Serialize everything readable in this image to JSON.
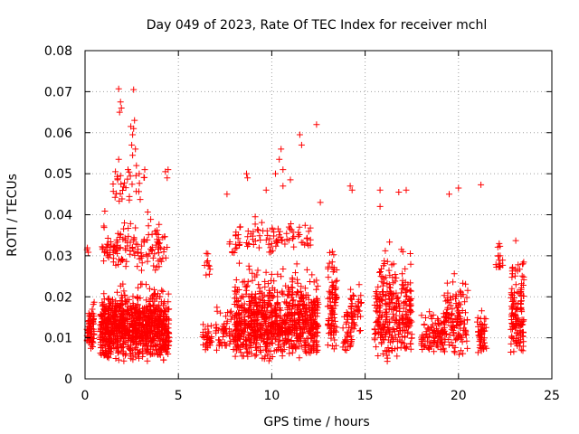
{
  "chart_data": {
    "type": "scatter",
    "title": "Day 049 of 2023, Rate Of TEC Index for receiver mchl",
    "xlabel": "GPS time / hours",
    "ylabel": "ROTI / TECUs",
    "xlim": [
      0,
      25
    ],
    "ylim": [
      0,
      0.08
    ],
    "x_ticks": [
      "0",
      "5",
      "10",
      "15",
      "20",
      "25"
    ],
    "y_ticks": [
      "0",
      "0.01",
      "0.02",
      "0.03",
      "0.04",
      "0.05",
      "0.06",
      "0.07",
      "0.08"
    ],
    "grid": true,
    "marker": "+",
    "color": "#ff0000",
    "clusters": [
      {
        "x": [
          0.1,
          0.5
        ],
        "y_range": [
          0.007,
          0.021
        ],
        "n": 70
      },
      {
        "x": [
          0.1,
          0.3
        ],
        "y_range": [
          0.029,
          0.035
        ],
        "n": 3
      },
      {
        "x": [
          0.8,
          4.5
        ],
        "y_range": [
          0.004,
          0.026
        ],
        "n": 900
      },
      {
        "x": [
          0.9,
          4.4
        ],
        "y_range": [
          0.026,
          0.042
        ],
        "n": 140
      },
      {
        "x": [
          1.5,
          3.2
        ],
        "y_range": [
          0.042,
          0.054
        ],
        "n": 28
      },
      {
        "x": [
          6.3,
          6.8
        ],
        "y_range": [
          0.006,
          0.015
        ],
        "n": 30
      },
      {
        "x": [
          6.4,
          6.7
        ],
        "y_range": [
          0.024,
          0.035
        ],
        "n": 10
      },
      {
        "x": [
          7.0,
          8.2
        ],
        "y_range": [
          0.006,
          0.02
        ],
        "n": 60
      },
      {
        "x": [
          7.7,
          8.0
        ],
        "y_range": [
          0.03,
          0.035
        ],
        "n": 6
      },
      {
        "x": [
          8.0,
          12.5
        ],
        "y_range": [
          0.004,
          0.03
        ],
        "n": 850
      },
      {
        "x": [
          8.0,
          12.2
        ],
        "y_range": [
          0.03,
          0.041
        ],
        "n": 90
      },
      {
        "x": [
          13.0,
          13.5
        ],
        "y_range": [
          0.006,
          0.036
        ],
        "n": 90
      },
      {
        "x": [
          13.8,
          14.3
        ],
        "y_range": [
          0.006,
          0.02
        ],
        "n": 40
      },
      {
        "x": [
          14.2,
          14.8
        ],
        "y_range": [
          0.01,
          0.028
        ],
        "n": 40
      },
      {
        "x": [
          15.5,
          17.5
        ],
        "y_range": [
          0.004,
          0.036
        ],
        "n": 300
      },
      {
        "x": [
          18.0,
          19.3
        ],
        "y_range": [
          0.005,
          0.02
        ],
        "n": 100
      },
      {
        "x": [
          19.2,
          20.5
        ],
        "y_range": [
          0.005,
          0.03
        ],
        "n": 130
      },
      {
        "x": [
          21.0,
          21.5
        ],
        "y_range": [
          0.005,
          0.02
        ],
        "n": 50
      },
      {
        "x": [
          22.0,
          22.4
        ],
        "y_range": [
          0.024,
          0.035
        ],
        "n": 15
      },
      {
        "x": [
          22.8,
          23.5
        ],
        "y_range": [
          0.004,
          0.036
        ],
        "n": 130
      }
    ],
    "points": [
      [
        1.8,
        0.0707
      ],
      [
        2.6,
        0.0705
      ],
      [
        1.9,
        0.0675
      ],
      [
        1.85,
        0.065
      ],
      [
        1.95,
        0.066
      ],
      [
        2.65,
        0.063
      ],
      [
        2.6,
        0.061
      ],
      [
        2.45,
        0.0615
      ],
      [
        2.55,
        0.0595
      ],
      [
        2.5,
        0.057
      ],
      [
        2.7,
        0.056
      ],
      [
        2.55,
        0.0545
      ],
      [
        1.8,
        0.0535
      ],
      [
        2.75,
        0.052
      ],
      [
        2.9,
        0.05
      ],
      [
        3.2,
        0.051
      ],
      [
        4.3,
        0.0505
      ],
      [
        4.45,
        0.051
      ],
      [
        4.4,
        0.049
      ],
      [
        2.3,
        0.051
      ],
      [
        1.75,
        0.0485
      ],
      [
        1.5,
        0.0475
      ],
      [
        12.4,
        0.062
      ],
      [
        11.5,
        0.0595
      ],
      [
        11.6,
        0.057
      ],
      [
        10.5,
        0.056
      ],
      [
        10.4,
        0.0535
      ],
      [
        10.6,
        0.051
      ],
      [
        10.2,
        0.05
      ],
      [
        8.65,
        0.05
      ],
      [
        8.7,
        0.049
      ],
      [
        11.0,
        0.0485
      ],
      [
        9.7,
        0.046
      ],
      [
        10.6,
        0.047
      ],
      [
        7.6,
        0.045
      ],
      [
        14.2,
        0.047
      ],
      [
        14.3,
        0.046
      ],
      [
        15.8,
        0.046
      ],
      [
        16.8,
        0.0455
      ],
      [
        17.2,
        0.046
      ],
      [
        19.5,
        0.045
      ],
      [
        20.0,
        0.0465
      ],
      [
        21.2,
        0.0473
      ],
      [
        15.8,
        0.042
      ],
      [
        12.6,
        0.043
      ]
    ]
  }
}
